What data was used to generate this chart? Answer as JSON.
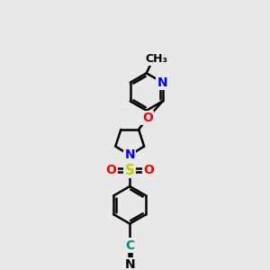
{
  "background_color": "#e8e8e8",
  "atom_colors": {
    "C": "#000000",
    "N": "#0000ff",
    "O": "#ff0000",
    "S": "#cccc00",
    "H": "#000000",
    "CN_C": "#008080",
    "CN_N": "#000000"
  },
  "bond_color": "#000000",
  "bond_width": 1.8,
  "font_size": 10,
  "figsize": [
    3.0,
    3.0
  ],
  "dpi": 100,
  "xlim": [
    0,
    10
  ],
  "ylim": [
    0,
    10
  ]
}
